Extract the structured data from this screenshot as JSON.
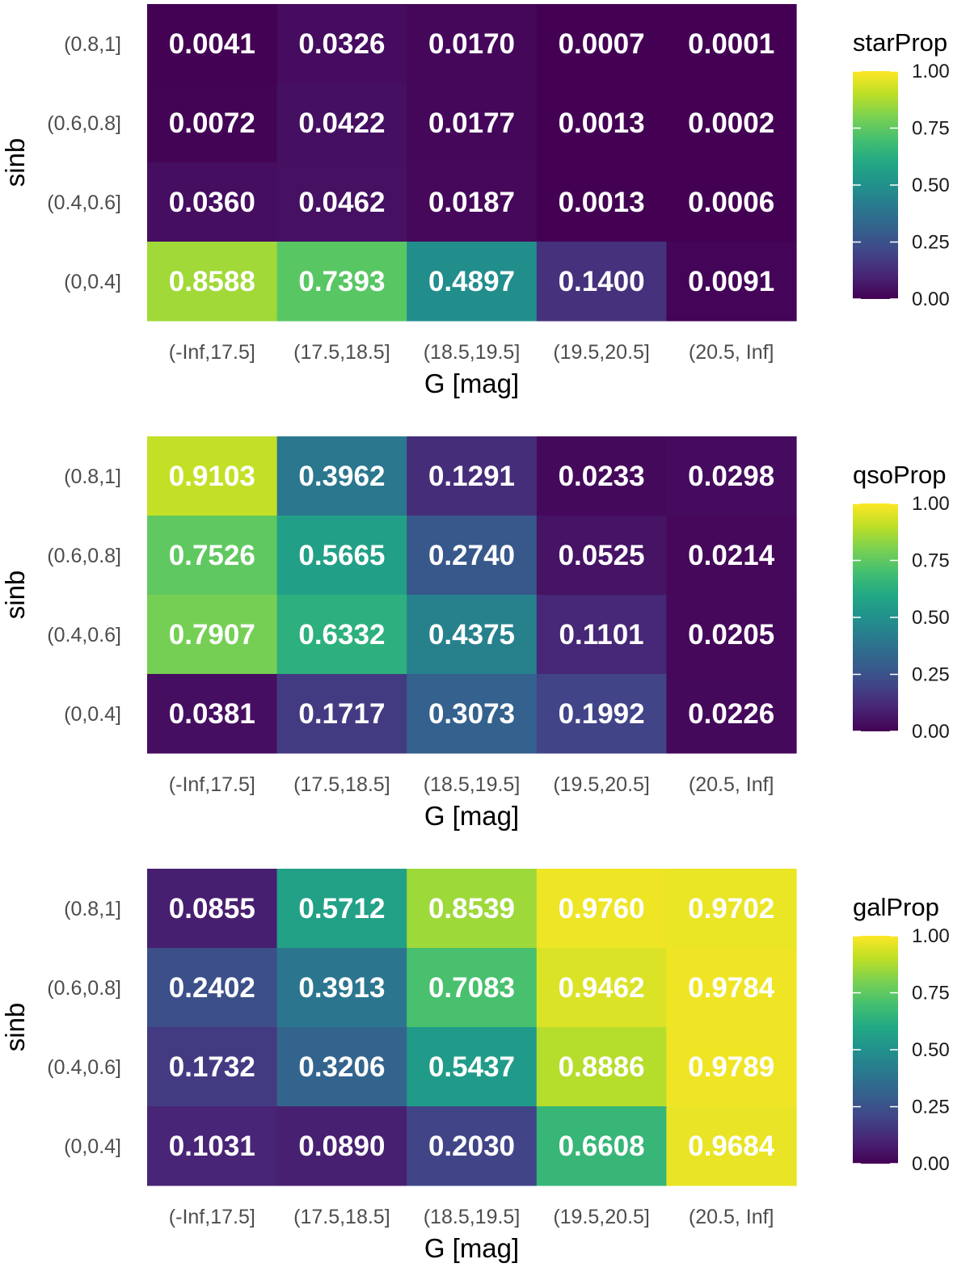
{
  "chart_data": [
    {
      "type": "heatmap",
      "xlabel": "G [mag]",
      "ylabel": "sinb",
      "x_categories": [
        "(-Inf,17.5]",
        "(17.5,18.5]",
        "(18.5,19.5]",
        "(19.5,20.5]",
        "(20.5, Inf]"
      ],
      "y_categories": [
        "(0.8,1]",
        "(0.6,0.8]",
        "(0.4,0.6]",
        "(0,0.4]"
      ],
      "values": [
        [
          "0.0041",
          "0.0326",
          "0.0170",
          "0.0007",
          "0.0001"
        ],
        [
          "0.0072",
          "0.0422",
          "0.0177",
          "0.0013",
          "0.0002"
        ],
        [
          "0.0360",
          "0.0462",
          "0.0187",
          "0.0013",
          "0.0006"
        ],
        [
          "0.8588",
          "0.7393",
          "0.4897",
          "0.1400",
          "0.0091"
        ]
      ],
      "legend_title": "starProp",
      "legend_ticks": [
        "1.00",
        "0.75",
        "0.50",
        "0.25",
        "0.00"
      ],
      "color_range": [
        0,
        1
      ],
      "colormap": "viridis"
    },
    {
      "type": "heatmap",
      "xlabel": "G [mag]",
      "ylabel": "sinb",
      "x_categories": [
        "(-Inf,17.5]",
        "(17.5,18.5]",
        "(18.5,19.5]",
        "(19.5,20.5]",
        "(20.5, Inf]"
      ],
      "y_categories": [
        "(0.8,1]",
        "(0.6,0.8]",
        "(0.4,0.6]",
        "(0,0.4]"
      ],
      "values": [
        [
          "0.9103",
          "0.3962",
          "0.1291",
          "0.0233",
          "0.0298"
        ],
        [
          "0.7526",
          "0.5665",
          "0.2740",
          "0.0525",
          "0.0214"
        ],
        [
          "0.7907",
          "0.6332",
          "0.4375",
          "0.1101",
          "0.0205"
        ],
        [
          "0.0381",
          "0.1717",
          "0.3073",
          "0.1992",
          "0.0226"
        ]
      ],
      "legend_title": "qsoProp",
      "legend_ticks": [
        "1.00",
        "0.75",
        "0.50",
        "0.25",
        "0.00"
      ],
      "color_range": [
        0,
        1
      ],
      "colormap": "viridis"
    },
    {
      "type": "heatmap",
      "xlabel": "G [mag]",
      "ylabel": "sinb",
      "x_categories": [
        "(-Inf,17.5]",
        "(17.5,18.5]",
        "(18.5,19.5]",
        "(19.5,20.5]",
        "(20.5, Inf]"
      ],
      "y_categories": [
        "(0.8,1]",
        "(0.6,0.8]",
        "(0.4,0.6]",
        "(0,0.4]"
      ],
      "values": [
        [
          "0.0855",
          "0.5712",
          "0.8539",
          "0.9760",
          "0.9702"
        ],
        [
          "0.2402",
          "0.3913",
          "0.7083",
          "0.9462",
          "0.9784"
        ],
        [
          "0.1732",
          "0.3206",
          "0.5437",
          "0.8886",
          "0.9789"
        ],
        [
          "0.1031",
          "0.0890",
          "0.2030",
          "0.6608",
          "0.9684"
        ]
      ],
      "legend_title": "galProp",
      "legend_ticks": [
        "1.00",
        "0.75",
        "0.50",
        "0.25",
        "0.00"
      ],
      "color_range": [
        0,
        1
      ],
      "colormap": "viridis"
    }
  ]
}
